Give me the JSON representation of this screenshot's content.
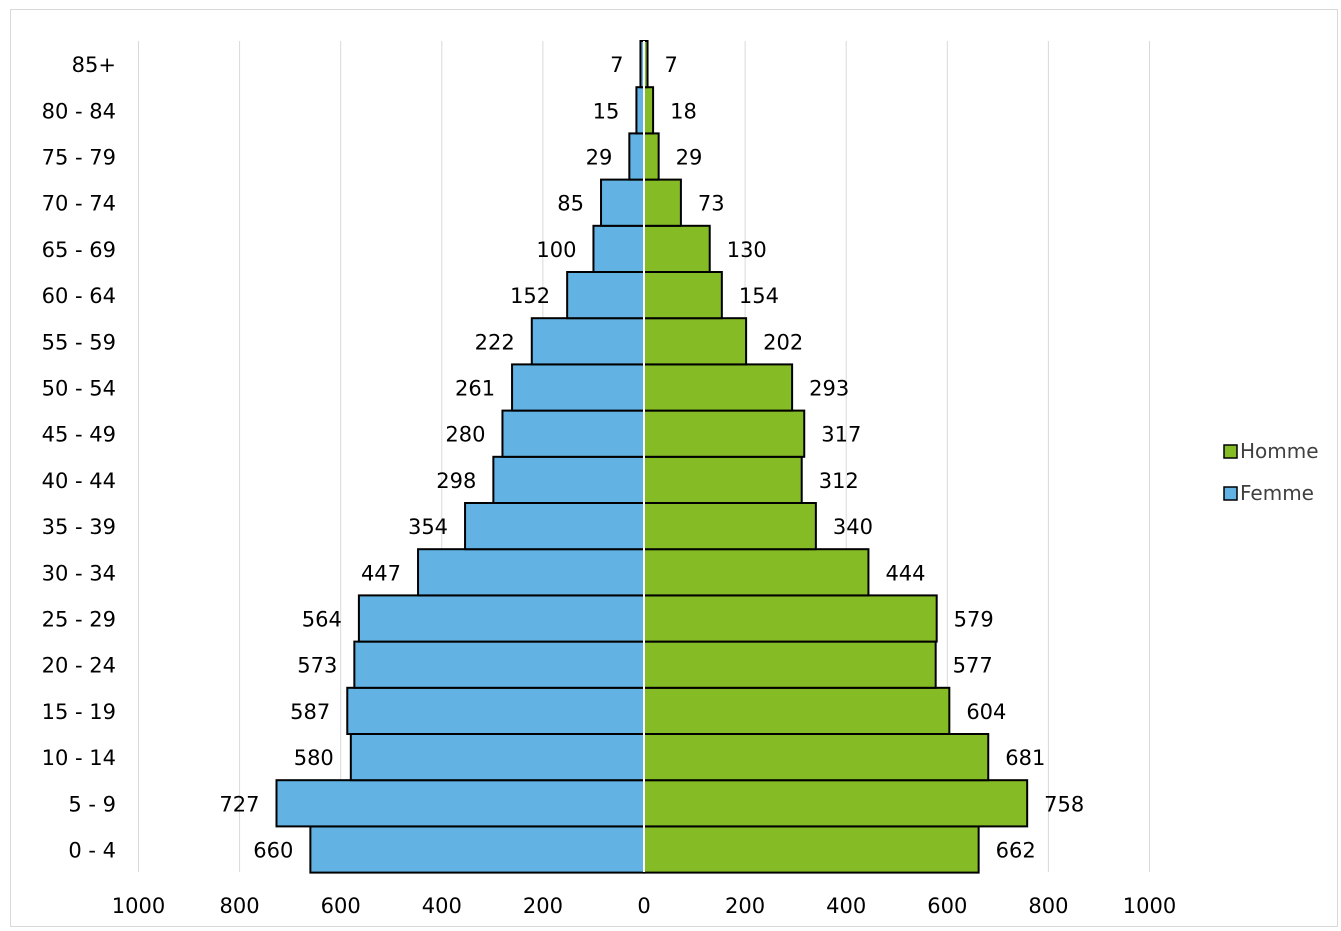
{
  "chart_data": {
    "type": "bar",
    "orientation": "horizontal",
    "layout": "population-pyramid",
    "categories": [
      "0 - 4",
      "5 - 9",
      "10 - 14",
      "15 - 19",
      "20 - 24",
      "25 - 29",
      "30 - 34",
      "35 - 39",
      "40 - 44",
      "45 - 49",
      "50 - 54",
      "55 - 59",
      "60 - 64",
      "65 - 69",
      "70 - 74",
      "75 - 79",
      "80 - 84",
      "85+"
    ],
    "series": [
      {
        "name": "Homme",
        "side": "right",
        "color": "#85bb25",
        "values": [
          662,
          758,
          681,
          604,
          577,
          579,
          444,
          340,
          312,
          317,
          293,
          202,
          154,
          130,
          73,
          29,
          18,
          7
        ]
      },
      {
        "name": "Femme",
        "side": "left",
        "color": "#62b3e3",
        "values": [
          660,
          727,
          580,
          587,
          573,
          564,
          447,
          354,
          298,
          280,
          261,
          222,
          152,
          100,
          85,
          29,
          15,
          7
        ]
      }
    ],
    "xticks": [
      "1000",
      "800",
      "600",
      "400",
      "200",
      "0",
      "200",
      "400",
      "600",
      "800",
      "1000"
    ],
    "xlim": [
      -1000,
      1000
    ],
    "grid": "vertical",
    "legend": "right",
    "legend_order": [
      "Homme",
      "Femme"
    ]
  }
}
